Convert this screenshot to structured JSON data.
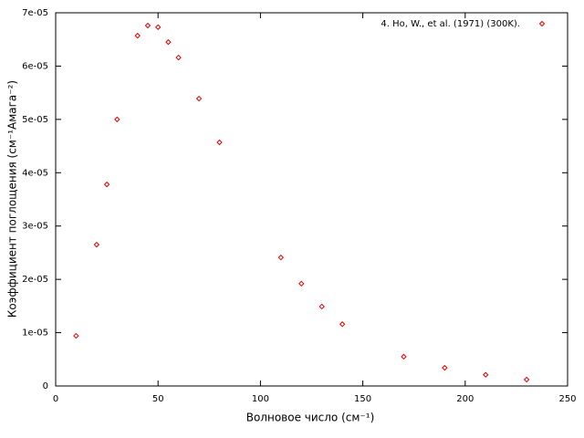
{
  "chart_data": {
    "type": "scatter",
    "xlabel": "Волновое число (см⁻¹)",
    "ylabel": "Коэффициент поглощения (см⁻¹Амага⁻²)",
    "series": [
      {
        "name": "4. Ho, W., et al. (1971) (300K).",
        "color": "#e00000",
        "x": [
          10,
          20,
          25,
          30,
          40,
          45,
          50,
          55,
          60,
          70,
          80,
          110,
          120,
          130,
          140,
          170,
          190,
          210,
          230
        ],
        "values": [
          9.4e-06,
          2.65e-05,
          3.78e-05,
          5e-05,
          6.57e-05,
          6.76e-05,
          6.73e-05,
          6.45e-05,
          6.16e-05,
          5.39e-05,
          4.57e-05,
          2.41e-05,
          1.92e-05,
          1.49e-05,
          1.16e-05,
          5.5e-06,
          3.4e-06,
          2.1e-06,
          1.2e-06
        ]
      }
    ],
    "xlim": [
      0,
      250
    ],
    "xticks": [
      0,
      50,
      100,
      150,
      200,
      250
    ],
    "ylim": [
      0,
      7e-05
    ],
    "yticks": [
      0,
      {
        "value": 1e-05,
        "label": "1e-05"
      },
      {
        "value": 2e-05,
        "label": "2e-05"
      },
      {
        "value": 3e-05,
        "label": "3e-05"
      },
      {
        "value": 4e-05,
        "label": "4e-05"
      },
      {
        "value": 5e-05,
        "label": "5e-05"
      },
      {
        "value": 6e-05,
        "label": "6e-05"
      },
      {
        "value": 7e-05,
        "label": "7e-05"
      }
    ],
    "legend": "top-right"
  }
}
